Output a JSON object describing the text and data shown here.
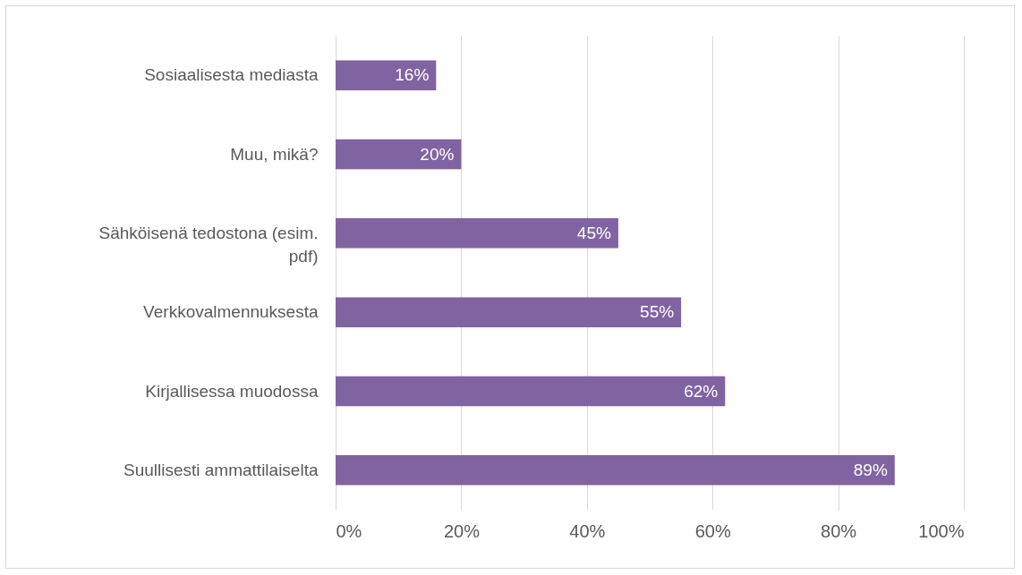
{
  "chart_data": {
    "type": "bar",
    "orientation": "horizontal",
    "categories": [
      "Sosiaalisesta mediasta",
      "Muu, mikä?",
      "Sähköisenä tedostona (esim. pdf)",
      "Verkkovalmennuksesta",
      "Kirjallisessa muodossa",
      "Suullisesti ammattilaiselta"
    ],
    "values": [
      16,
      20,
      45,
      55,
      62,
      89
    ],
    "value_labels": [
      "16%",
      "20%",
      "45%",
      "55%",
      "62%",
      "89%"
    ],
    "color": "#8064a2",
    "xlim": [
      0,
      100
    ],
    "xticks": [
      {
        "value": 0,
        "label": "0%"
      },
      {
        "value": 20,
        "label": "20%"
      },
      {
        "value": 40,
        "label": "40%"
      },
      {
        "value": 60,
        "label": "60%"
      },
      {
        "value": 80,
        "label": "80%"
      },
      {
        "value": 100,
        "label": "100%"
      }
    ],
    "grid": "x"
  }
}
